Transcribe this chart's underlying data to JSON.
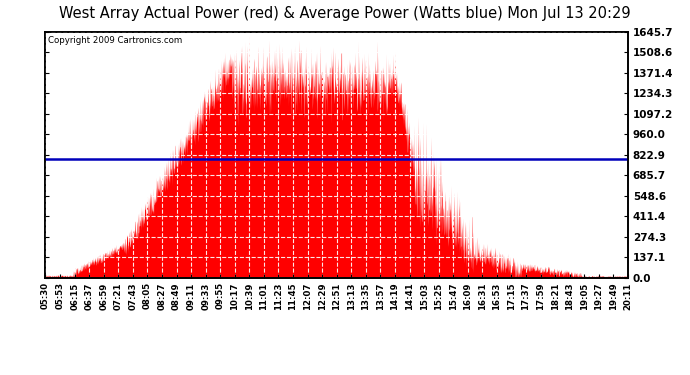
{
  "title": "West Array Actual Power (red) & Average Power (Watts blue) Mon Jul 13 20:29",
  "copyright": "Copyright 2009 Cartronics.com",
  "avg_power": 792.53,
  "ymax": 1645.7,
  "ymin": 0.0,
  "yticks": [
    0.0,
    137.1,
    274.3,
    411.4,
    548.6,
    685.7,
    822.9,
    960.0,
    1097.2,
    1234.3,
    1371.4,
    1508.6,
    1645.7
  ],
  "xtick_labels": [
    "05:30",
    "05:53",
    "06:15",
    "06:37",
    "06:59",
    "07:21",
    "07:43",
    "08:05",
    "08:27",
    "08:49",
    "09:11",
    "09:33",
    "09:55",
    "10:17",
    "10:39",
    "11:01",
    "11:23",
    "11:45",
    "12:07",
    "12:29",
    "12:51",
    "13:13",
    "13:35",
    "13:57",
    "14:19",
    "14:41",
    "15:03",
    "15:25",
    "15:47",
    "16:09",
    "16:31",
    "16:53",
    "17:15",
    "17:37",
    "17:59",
    "18:21",
    "18:43",
    "19:05",
    "19:27",
    "19:49",
    "20:11"
  ],
  "background_color": "#ffffff",
  "fill_color": "#ff0000",
  "line_color": "#0000bb",
  "grid_color": "#888888",
  "title_fontsize": 10.5
}
